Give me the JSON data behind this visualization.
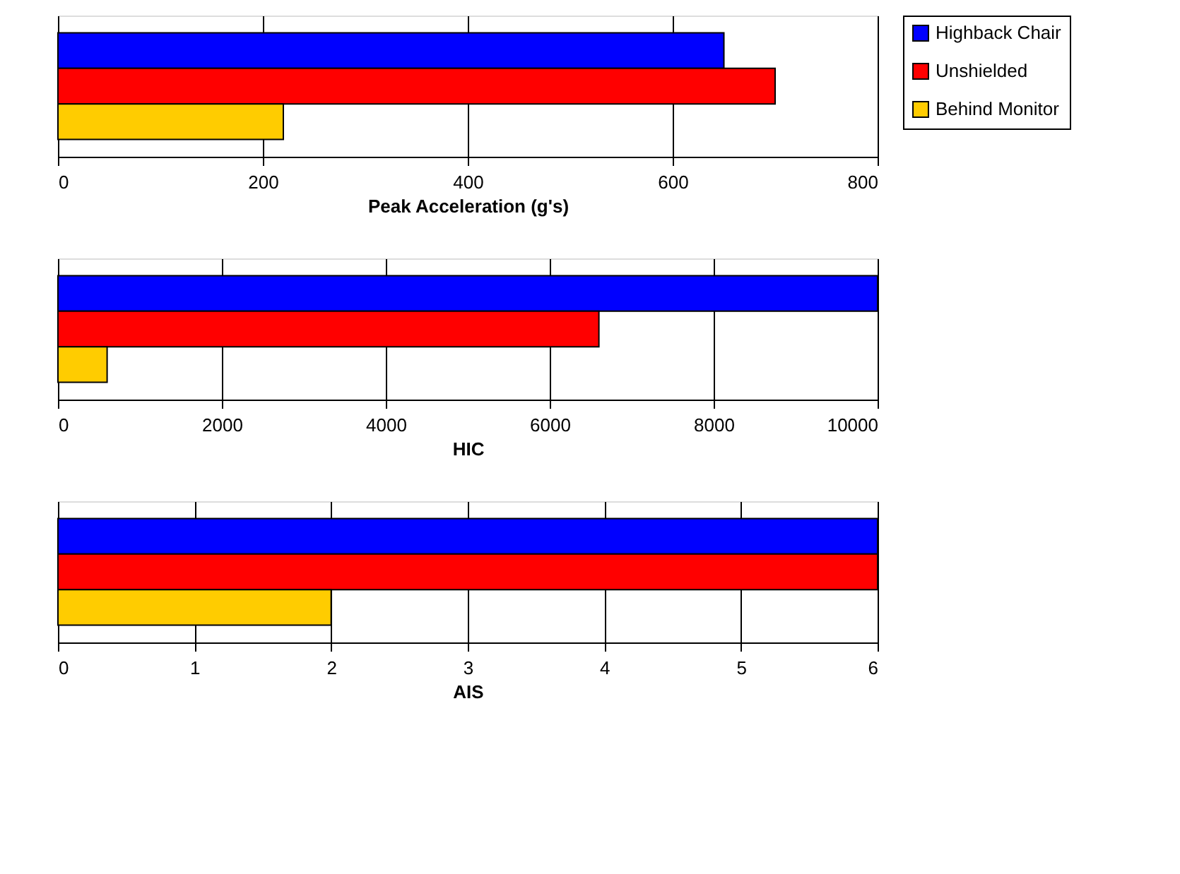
{
  "chart_data": [
    {
      "type": "bar",
      "orientation": "horizontal",
      "xlabel": "Peak Acceleration (g's)",
      "categories": [
        null
      ],
      "xlim": [
        0,
        800
      ],
      "xticks": [
        0,
        200,
        400,
        600,
        800
      ],
      "grid": "x",
      "legend": "right",
      "series": [
        {
          "name": "Highback Chair",
          "color": "#0000ff",
          "values": [
            650
          ]
        },
        {
          "name": "Unshielded",
          "color": "#ff0000",
          "values": [
            700
          ]
        },
        {
          "name": "Behind Monitor",
          "color": "#ffcc00",
          "values": [
            220
          ]
        }
      ]
    },
    {
      "type": "bar",
      "orientation": "horizontal",
      "xlabel": "HIC",
      "categories": [
        null
      ],
      "xlim": [
        0,
        10000
      ],
      "xticks": [
        0,
        2000,
        4000,
        6000,
        8000,
        10000
      ],
      "grid": "x",
      "series": [
        {
          "color": "#0000ff",
          "values": [
            10000
          ]
        },
        {
          "color": "#ff0000",
          "values": [
            6600
          ]
        },
        {
          "color": "#ffcc00",
          "values": [
            600
          ]
        }
      ]
    },
    {
      "type": "bar",
      "orientation": "horizontal",
      "xlabel": "AIS",
      "categories": [
        null
      ],
      "xlim": [
        0,
        6
      ],
      "xticks": [
        0,
        1,
        2,
        3,
        4,
        5,
        6
      ],
      "grid": "x",
      "series": [
        {
          "color": "#0000ff",
          "values": [
            6
          ]
        },
        {
          "color": "#ff0000",
          "values": [
            6
          ]
        },
        {
          "color": "#ffcc00",
          "values": [
            2
          ]
        }
      ]
    }
  ]
}
